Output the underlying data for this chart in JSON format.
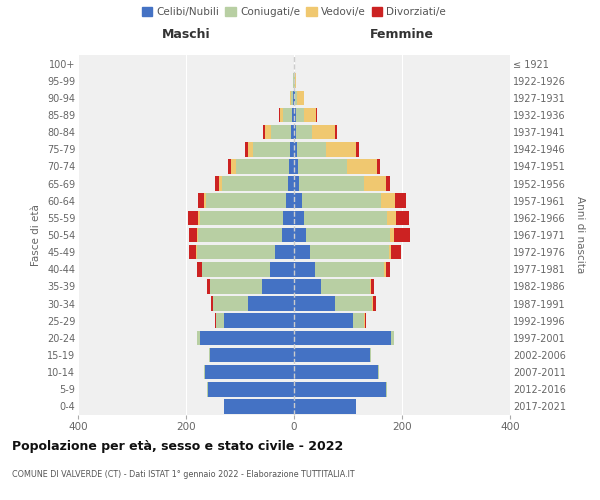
{
  "age_groups": [
    "0-4",
    "5-9",
    "10-14",
    "15-19",
    "20-24",
    "25-29",
    "30-34",
    "35-39",
    "40-44",
    "45-49",
    "50-54",
    "55-59",
    "60-64",
    "65-69",
    "70-74",
    "75-79",
    "80-84",
    "85-89",
    "90-94",
    "95-99",
    "100+"
  ],
  "birth_years": [
    "2017-2021",
    "2012-2016",
    "2007-2011",
    "2002-2006",
    "1997-2001",
    "1992-1996",
    "1987-1991",
    "1982-1986",
    "1977-1981",
    "1972-1976",
    "1967-1971",
    "1962-1966",
    "1957-1961",
    "1952-1956",
    "1947-1951",
    "1942-1946",
    "1937-1941",
    "1932-1936",
    "1927-1931",
    "1922-1926",
    "≤ 1921"
  ],
  "maschi": {
    "celibi": [
      130,
      160,
      165,
      155,
      175,
      130,
      85,
      60,
      45,
      35,
      22,
      20,
      15,
      12,
      10,
      8,
      5,
      3,
      1,
      0,
      0
    ],
    "coniugati": [
      0,
      2,
      2,
      2,
      4,
      15,
      65,
      95,
      125,
      145,
      155,
      155,
      148,
      122,
      98,
      68,
      38,
      18,
      5,
      1,
      0
    ],
    "vedovi": [
      0,
      0,
      0,
      0,
      0,
      0,
      0,
      1,
      1,
      2,
      2,
      3,
      4,
      5,
      8,
      10,
      10,
      5,
      2,
      0,
      0
    ],
    "divorziati": [
      0,
      0,
      0,
      0,
      0,
      2,
      3,
      6,
      8,
      12,
      16,
      18,
      10,
      8,
      7,
      5,
      4,
      2,
      0,
      0,
      0
    ]
  },
  "femmine": {
    "nubili": [
      115,
      170,
      155,
      140,
      180,
      110,
      75,
      50,
      38,
      30,
      22,
      18,
      14,
      10,
      8,
      5,
      4,
      3,
      1,
      0,
      0
    ],
    "coniugate": [
      0,
      2,
      2,
      2,
      5,
      20,
      70,
      90,
      128,
      145,
      155,
      155,
      148,
      120,
      90,
      55,
      30,
      15,
      5,
      1,
      0
    ],
    "vedove": [
      0,
      0,
      0,
      0,
      0,
      1,
      2,
      3,
      4,
      5,
      8,
      15,
      25,
      40,
      55,
      55,
      42,
      22,
      12,
      2,
      0
    ],
    "divorziate": [
      0,
      0,
      0,
      0,
      1,
      2,
      4,
      5,
      8,
      18,
      30,
      25,
      20,
      8,
      7,
      5,
      4,
      3,
      1,
      0,
      0
    ]
  },
  "colors": {
    "celibi": "#4472C4",
    "coniugati": "#b8cfa3",
    "vedovi": "#f0c870",
    "divorziati": "#cc2222"
  },
  "title": "Popolazione per età, sesso e stato civile - 2022",
  "subtitle": "COMUNE DI VALVERDE (CT) - Dati ISTAT 1° gennaio 2022 - Elaborazione TUTTITALIA.IT",
  "maschi_label": "Maschi",
  "femmine_label": "Femmine",
  "ylabel_left": "Fasce di età",
  "ylabel_right": "Anni di nascita",
  "xlim": 400,
  "xticks": [
    -400,
    -200,
    0,
    200,
    400
  ],
  "legend_labels": [
    "Celibi/Nubili",
    "Coniugati/e",
    "Vedovi/e",
    "Divorziati/e"
  ],
  "background_color": "#ffffff",
  "plot_bg": "#f0f0f0"
}
